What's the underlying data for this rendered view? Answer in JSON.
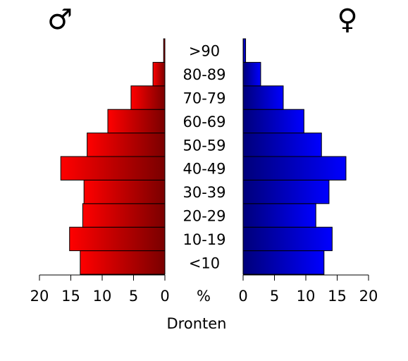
{
  "chart_data": {
    "type": "pyramid",
    "categories": [
      "<10",
      "10-19",
      "20-29",
      "30-39",
      "40-49",
      "50-59",
      "60-69",
      "70-79",
      "80-89",
      ">90"
    ],
    "series": [
      {
        "name": "♂",
        "color": "#ff0000",
        "values": [
          13.5,
          15.2,
          13.1,
          12.9,
          16.6,
          12.4,
          9.1,
          5.4,
          1.9,
          0.2
        ]
      },
      {
        "name": "♀",
        "color": "#0000ff",
        "values": [
          12.9,
          14.2,
          11.6,
          13.7,
          16.4,
          12.5,
          9.7,
          6.4,
          2.8,
          0.4
        ]
      }
    ],
    "xlim": [
      0,
      20
    ],
    "xticks": [
      0,
      5,
      10,
      15,
      20
    ],
    "unit_label": "%",
    "xlabel": "Dronten"
  }
}
